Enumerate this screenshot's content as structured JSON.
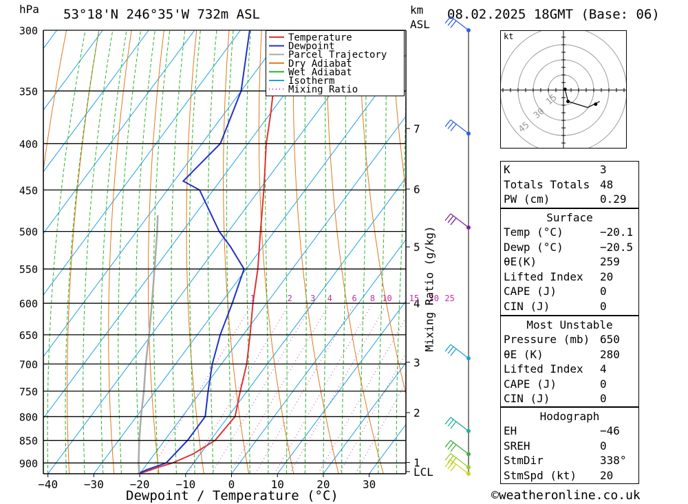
{
  "header": {
    "pressure_unit": "hPa",
    "location": "53°18'N  246°35'W  732m  ASL",
    "km_label": "km",
    "asl_label": "ASL",
    "datetime": "08.02.2025  18GMT  (Base: 06)"
  },
  "credit": "©weatheronline.co.uk",
  "chart_data": {
    "type": "line",
    "chart_kind": "skew-T log-P diagram",
    "xlabel": "Dewpoint / Temperature (°C)",
    "ylabel": "hPa",
    "mixing_ratio_axis_label": "Mixing Ratio (g/kg)",
    "x_ticks": [
      -40,
      -30,
      -20,
      -10,
      0,
      10,
      20,
      30
    ],
    "x_tick_labels": [
      "−40",
      "−30",
      "−20",
      "−10",
      "0",
      "10",
      "20",
      "30"
    ],
    "pressure_levels": [
      300,
      350,
      400,
      450,
      500,
      550,
      600,
      650,
      700,
      750,
      800,
      850,
      900
    ],
    "pressure_range": [
      300,
      925
    ],
    "temperature_range_at_surface": [
      -41,
      38
    ],
    "km_ticks": [
      {
        "km": "7",
        "p": 385
      },
      {
        "km": "6",
        "p": 449
      },
      {
        "km": "5",
        "p": 520
      },
      {
        "km": "4",
        "p": 600
      },
      {
        "km": "3",
        "p": 697
      },
      {
        "km": "2",
        "p": 792
      },
      {
        "km": "1",
        "p": 899
      },
      {
        "km": "LCL",
        "p": 920
      }
    ],
    "mixing_ratio_labels": [
      "1",
      "2",
      "3",
      "4",
      "6",
      "8",
      "10",
      "15",
      "20",
      "25"
    ],
    "legend": [
      "Temperature",
      "Dewpoint",
      "Parcel Trajectory",
      "Dry Adiabat",
      "Wet Adiabat",
      "Isotherm",
      "Mixing Ratio"
    ],
    "legend_position": "top-right",
    "series": [
      {
        "name": "Temperature",
        "color": "#e03030",
        "points": [
          [
            925,
            -20.1
          ],
          [
            910,
            -17
          ],
          [
            900,
            -14.6
          ],
          [
            880,
            -11.6
          ],
          [
            850,
            -9
          ],
          [
            800,
            -8.5
          ],
          [
            750,
            -11.5
          ],
          [
            700,
            -14.5
          ],
          [
            650,
            -18.5
          ],
          [
            600,
            -23
          ],
          [
            550,
            -27.5
          ],
          [
            500,
            -33
          ],
          [
            450,
            -39
          ],
          [
            400,
            -46
          ],
          [
            370,
            -50
          ],
          [
            350,
            -53
          ],
          [
            320,
            -50
          ],
          [
            300,
            -48
          ]
        ]
      },
      {
        "name": "Dewpoint",
        "color": "#2030c8",
        "points": [
          [
            925,
            -20.5
          ],
          [
            915,
            -19
          ],
          [
            900,
            -16
          ],
          [
            850,
            -15
          ],
          [
            800,
            -15
          ],
          [
            750,
            -18.5
          ],
          [
            700,
            -22
          ],
          [
            650,
            -25
          ],
          [
            600,
            -27.5
          ],
          [
            550,
            -30.5
          ],
          [
            520,
            -37
          ],
          [
            500,
            -42
          ],
          [
            450,
            -53
          ],
          [
            440,
            -58
          ],
          [
            400,
            -56
          ],
          [
            350,
            -60
          ],
          [
            300,
            -68
          ]
        ]
      },
      {
        "name": "Parcel Trajectory",
        "color": "#aaaaaa",
        "points": [
          [
            925,
            -20.1
          ],
          [
            900,
            -22
          ],
          [
            850,
            -25.5
          ],
          [
            800,
            -29
          ],
          [
            750,
            -32.5
          ],
          [
            700,
            -36.5
          ],
          [
            650,
            -40.5
          ],
          [
            600,
            -45
          ],
          [
            550,
            -50
          ],
          [
            500,
            -55.5
          ],
          [
            480,
            -58
          ]
        ]
      }
    ],
    "wind_barbs": [
      {
        "p": 300,
        "color": "#3060e0"
      },
      {
        "p": 390,
        "color": "#3060e0"
      },
      {
        "p": 495,
        "color": "#8020a0"
      },
      {
        "p": 690,
        "color": "#20a0d0"
      },
      {
        "p": 830,
        "color": "#20b0a0"
      },
      {
        "p": 880,
        "color": "#40b040"
      },
      {
        "p": 910,
        "color": "#90d020"
      },
      {
        "p": 925,
        "color": "#d0d020"
      }
    ],
    "hodograph": {
      "unit": "kt",
      "ring_labels": [
        "15",
        "30",
        "45"
      ],
      "trace": [
        [
          0.2,
          -0.1
        ],
        [
          0.6,
          1.5
        ],
        [
          3.2,
          2.3
        ],
        [
          4.8,
          1.5
        ]
      ]
    }
  },
  "indices": {
    "rows": [
      {
        "k": "K",
        "v": "3"
      },
      {
        "k": "Totals Totals",
        "v": "48"
      },
      {
        "k": "PW (cm)",
        "v": "0.29"
      }
    ]
  },
  "surface": {
    "title": "Surface",
    "rows": [
      {
        "k": "Temp (°C)",
        "v": "−20.1"
      },
      {
        "k": "Dewp (°C)",
        "v": "−20.5"
      },
      {
        "k": "θE(K)",
        "v": "259"
      },
      {
        "k": "Lifted Index",
        "v": "20"
      },
      {
        "k": "CAPE (J)",
        "v": "0"
      },
      {
        "k": "CIN (J)",
        "v": "0"
      }
    ]
  },
  "most_unstable": {
    "title": "Most Unstable",
    "rows": [
      {
        "k": "Pressure (mb)",
        "v": "650"
      },
      {
        "k": "θE (K)",
        "v": "280"
      },
      {
        "k": "Lifted Index",
        "v": "4"
      },
      {
        "k": "CAPE (J)",
        "v": "0"
      },
      {
        "k": "CIN (J)",
        "v": "0"
      }
    ]
  },
  "hodograph_table": {
    "title": "Hodograph",
    "rows": [
      {
        "k": "EH",
        "v": "−46"
      },
      {
        "k": "SREH",
        "v": "0"
      },
      {
        "k": "StmDir",
        "v": "338°"
      },
      {
        "k": "StmSpd (kt)",
        "v": "20"
      }
    ]
  }
}
